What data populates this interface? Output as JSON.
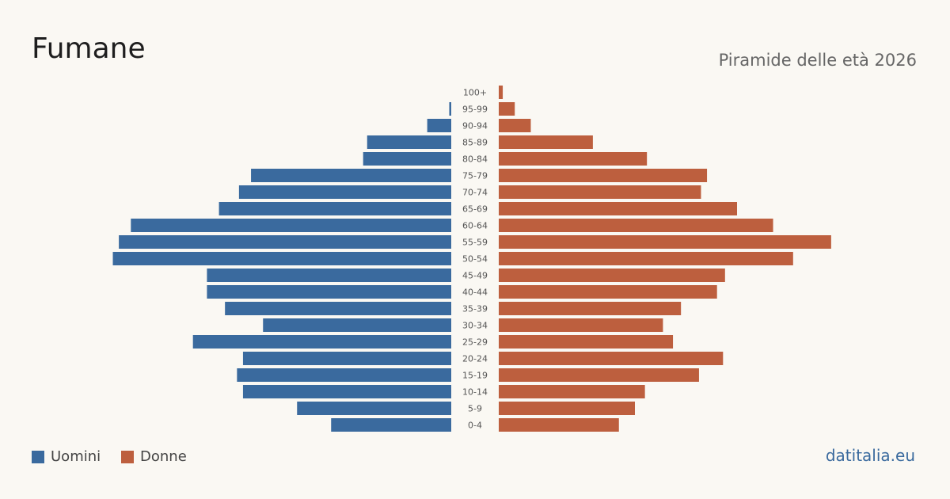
{
  "header": {
    "title": "Fumane",
    "subtitle": "Piramide delle età 2026"
  },
  "legend": {
    "men_label": "Uomini",
    "women_label": "Donne"
  },
  "brand": "datitalia.eu",
  "colors": {
    "men": "#3a6a9e",
    "women": "#bd5f3e",
    "brand": "#3a6a9e",
    "background": "#faf8f3"
  },
  "chart_data": {
    "type": "bar",
    "orientation": "horizontal-pyramid",
    "categories": [
      "100+",
      "95-99",
      "90-94",
      "85-89",
      "80-84",
      "75-79",
      "70-74",
      "65-69",
      "60-64",
      "55-59",
      "50-54",
      "45-49",
      "40-44",
      "35-39",
      "30-34",
      "25-29",
      "20-24",
      "15-19",
      "10-14",
      "5-9",
      "0-4"
    ],
    "series": [
      {
        "name": "Uomini",
        "values": [
          0,
          1,
          12,
          42,
          44,
          100,
          106,
          116,
          160,
          166,
          169,
          122,
          122,
          113,
          94,
          129,
          104,
          107,
          104,
          77,
          60
        ]
      },
      {
        "name": "Donne",
        "values": [
          2,
          8,
          16,
          47,
          74,
          104,
          101,
          119,
          137,
          166,
          147,
          113,
          109,
          91,
          82,
          87,
          112,
          100,
          73,
          68,
          60
        ]
      }
    ],
    "xlim": [
      0,
      170
    ],
    "grid": false,
    "legend_position": "bottom-left"
  }
}
